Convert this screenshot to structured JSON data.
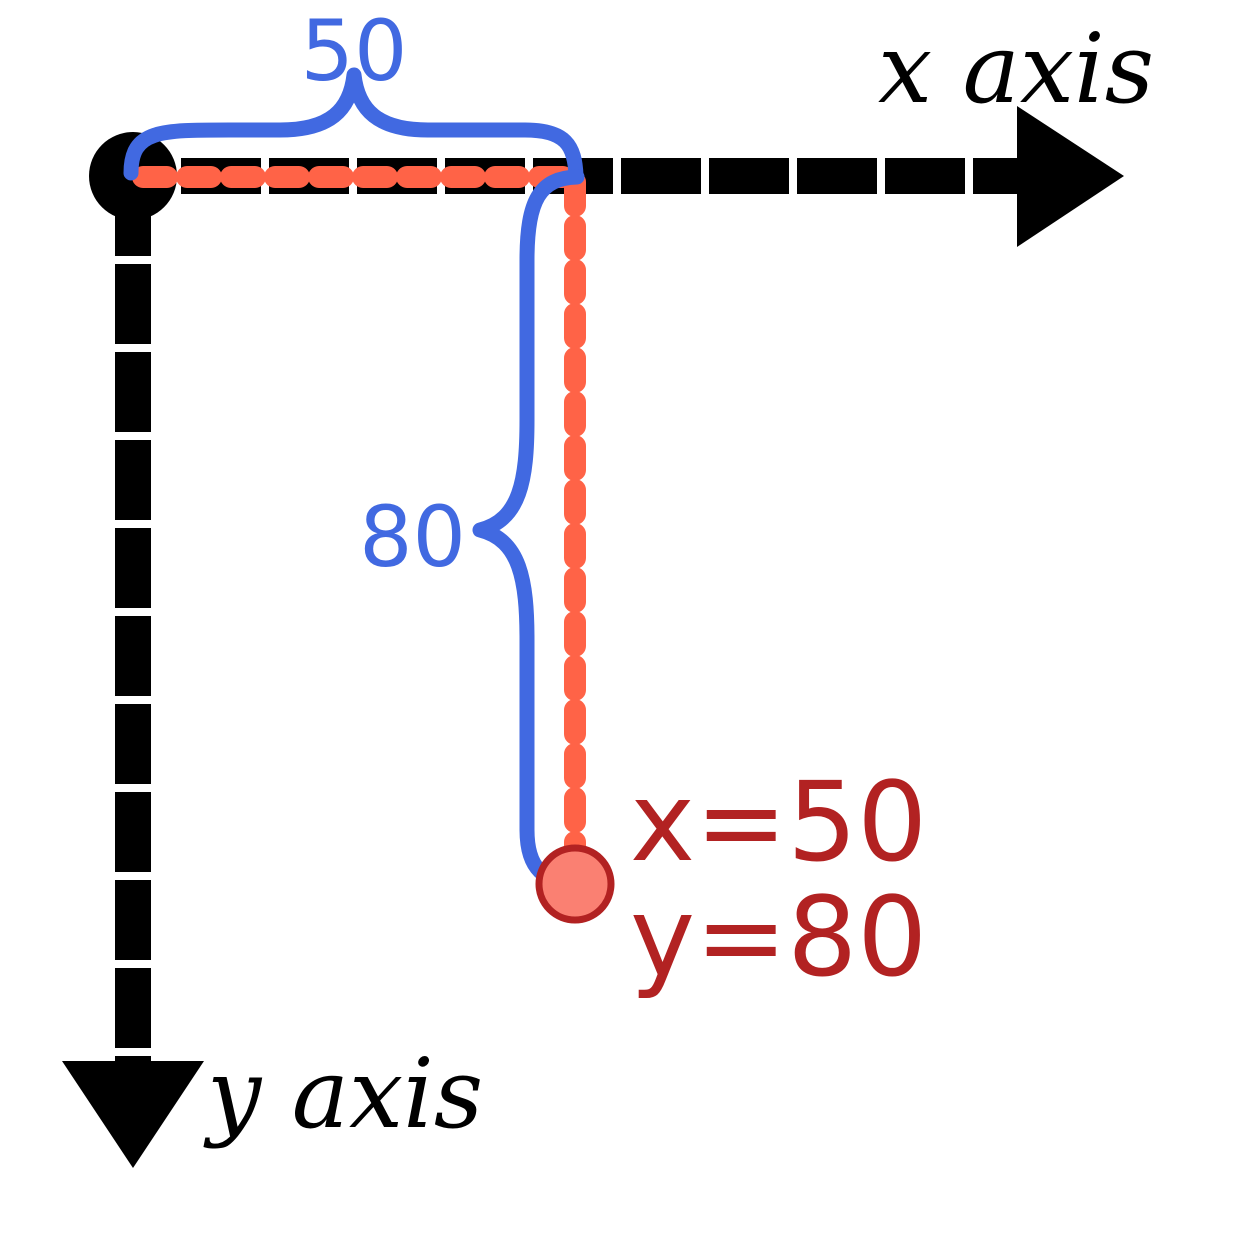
{
  "labels": {
    "x_axis": "x axis",
    "y_axis": "y axis",
    "x_distance": "50",
    "y_distance": "80",
    "point_x": "x=50",
    "point_y": "y=80"
  },
  "point": {
    "x": 50,
    "y": 80
  },
  "colors": {
    "axis": "#000000",
    "axis_gap": "#ffffff",
    "brace": "#4169e1",
    "guide": "#ff6347",
    "point_fill": "#fa8072",
    "point_stroke": "#b22222",
    "coord_text": "#b22222"
  }
}
